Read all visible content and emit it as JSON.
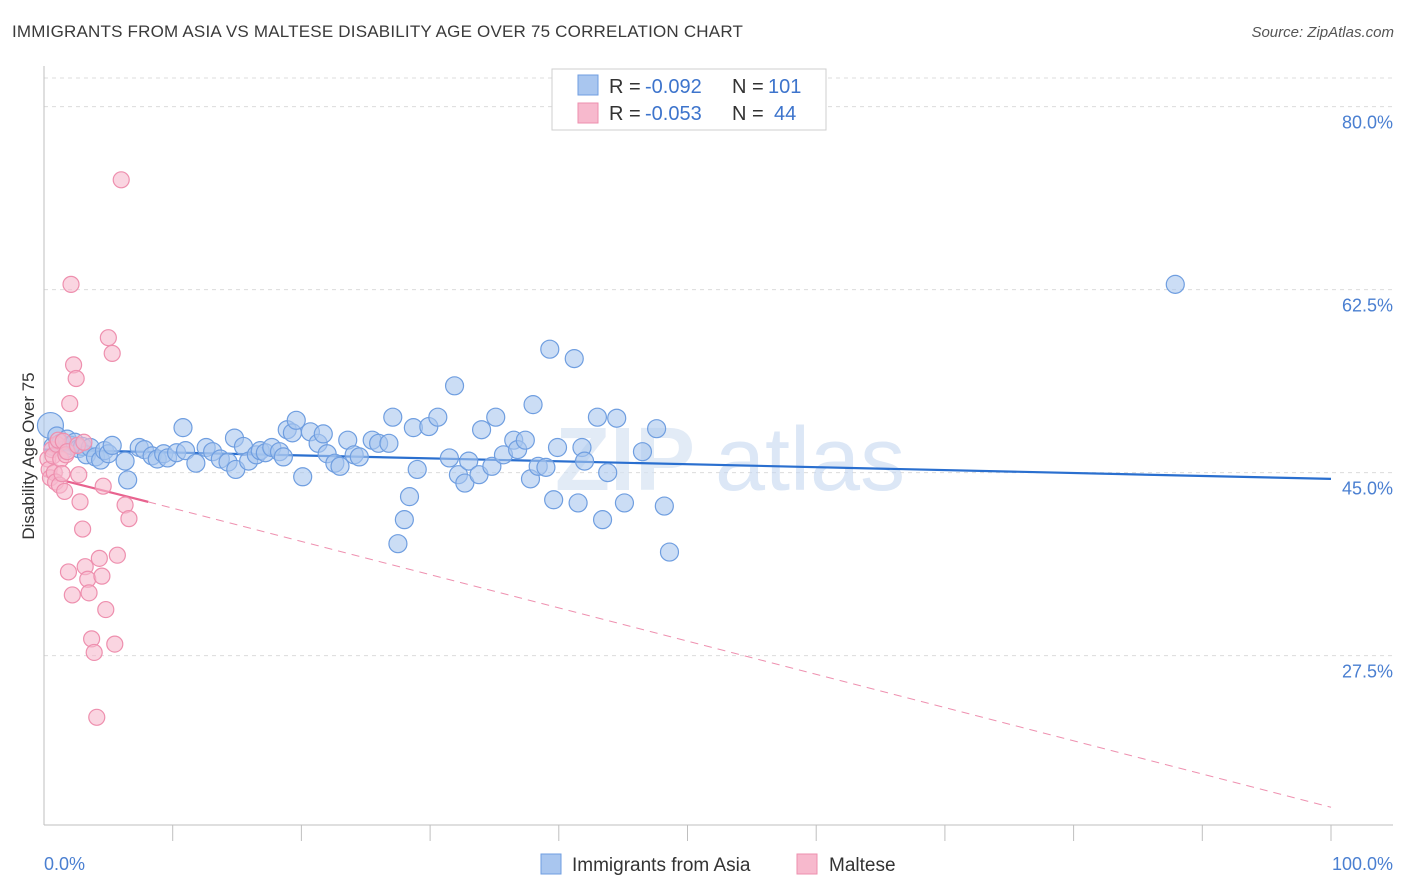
{
  "title": "IMMIGRANTS FROM ASIA VS MALTESE DISABILITY AGE OVER 75 CORRELATION CHART",
  "source": "Source: ZipAtlas.com",
  "colors": {
    "blue_fill": "#a9c6ef",
    "blue_stroke": "#6f9ee0",
    "blue_line": "#2a6fcf",
    "pink_fill": "#f7b9cd",
    "pink_stroke": "#ee8fae",
    "pink_line": "#e8638f",
    "tick_text": "#4a7fd1",
    "grid": "#dcdcdc"
  },
  "legend": {
    "rows": [
      {
        "r_label": "R = ",
        "r_value": "-0.092",
        "n_label": "N = ",
        "n_value": "101",
        "color": "blue"
      },
      {
        "r_label": "R = ",
        "r_value": "-0.053",
        "n_label": "N = ",
        "n_value": "44",
        "color": "pink"
      }
    ]
  },
  "bottom_legend": [
    {
      "label": "Immigrants from Asia",
      "color": "blue"
    },
    {
      "label": "Maltese",
      "color": "pink"
    }
  ],
  "watermark": {
    "zip": "ZIP",
    "atlas": "atlas"
  },
  "chart_data": {
    "type": "scatter",
    "xlabel": "",
    "ylabel": "Disability Age Over 75",
    "xlim": [
      0,
      100
    ],
    "ylim": [
      11.3,
      83.5
    ],
    "x_tick_labels": [
      {
        "value": 0,
        "label": "0.0%"
      },
      {
        "value": 100,
        "label": "100.0%"
      }
    ],
    "y_tick_labels": [
      {
        "value": 80,
        "label": "80.0%"
      },
      {
        "value": 62.5,
        "label": "62.5%"
      },
      {
        "value": 45,
        "label": "45.0%"
      },
      {
        "value": 27.5,
        "label": "27.5%"
      }
    ],
    "x_minor_ticks": [
      10,
      20,
      30,
      40,
      50,
      60,
      70,
      80,
      90,
      100
    ],
    "grid": true,
    "legend_position": "top-center",
    "series": [
      {
        "name": "Immigrants from Asia",
        "color": "blue",
        "points": [
          [
            0.5,
            49.5
          ],
          [
            0.7,
            47.5
          ],
          [
            1.0,
            48.5
          ],
          [
            1.3,
            47.8
          ],
          [
            1.6,
            47.2
          ],
          [
            1.8,
            48.2
          ],
          [
            2.1,
            47.6
          ],
          [
            2.4,
            47.9
          ],
          [
            2.7,
            47.3
          ],
          [
            3.0,
            47.5
          ],
          [
            3.3,
            46.7
          ],
          [
            3.6,
            47.4
          ],
          [
            4.0,
            46.5
          ],
          [
            4.4,
            46.2
          ],
          [
            4.7,
            47.1
          ],
          [
            5.0,
            46.8
          ],
          [
            5.3,
            47.6
          ],
          [
            6.3,
            46.1
          ],
          [
            6.5,
            44.3
          ],
          [
            7.4,
            47.4
          ],
          [
            7.8,
            47.2
          ],
          [
            8.4,
            46.6
          ],
          [
            8.8,
            46.3
          ],
          [
            9.3,
            46.8
          ],
          [
            9.6,
            46.4
          ],
          [
            10.3,
            46.9
          ],
          [
            10.8,
            49.3
          ],
          [
            11.0,
            47.1
          ],
          [
            11.8,
            45.9
          ],
          [
            12.6,
            47.4
          ],
          [
            13.1,
            47.0
          ],
          [
            13.7,
            46.3
          ],
          [
            14.3,
            46.0
          ],
          [
            14.8,
            48.3
          ],
          [
            14.9,
            45.3
          ],
          [
            15.5,
            47.5
          ],
          [
            15.9,
            46.1
          ],
          [
            16.5,
            46.7
          ],
          [
            16.8,
            47.1
          ],
          [
            17.2,
            46.9
          ],
          [
            17.7,
            47.4
          ],
          [
            18.3,
            47.0
          ],
          [
            18.6,
            46.5
          ],
          [
            18.9,
            49.1
          ],
          [
            19.3,
            48.8
          ],
          [
            19.6,
            50.0
          ],
          [
            20.1,
            44.6
          ],
          [
            20.7,
            48.9
          ],
          [
            21.3,
            47.8
          ],
          [
            21.7,
            48.7
          ],
          [
            22.0,
            46.8
          ],
          [
            22.6,
            45.9
          ],
          [
            23.0,
            45.6
          ],
          [
            23.6,
            48.1
          ],
          [
            24.1,
            46.7
          ],
          [
            24.5,
            46.5
          ],
          [
            25.5,
            48.1
          ],
          [
            26.0,
            47.8
          ],
          [
            26.8,
            47.8
          ],
          [
            27.1,
            50.3
          ],
          [
            27.5,
            38.2
          ],
          [
            28.0,
            40.5
          ],
          [
            28.4,
            42.7
          ],
          [
            28.7,
            49.3
          ],
          [
            29.0,
            45.3
          ],
          [
            29.9,
            49.4
          ],
          [
            30.6,
            50.3
          ],
          [
            31.5,
            46.4
          ],
          [
            31.9,
            53.3
          ],
          [
            32.2,
            44.8
          ],
          [
            32.7,
            44.0
          ],
          [
            33.0,
            46.1
          ],
          [
            33.8,
            44.8
          ],
          [
            34.0,
            49.1
          ],
          [
            34.8,
            45.6
          ],
          [
            35.1,
            50.3
          ],
          [
            35.7,
            46.7
          ],
          [
            36.5,
            48.1
          ],
          [
            36.8,
            47.2
          ],
          [
            37.4,
            48.1
          ],
          [
            37.8,
            44.4
          ],
          [
            38.0,
            51.5
          ],
          [
            38.4,
            45.6
          ],
          [
            39.0,
            45.5
          ],
          [
            39.3,
            56.8
          ],
          [
            39.6,
            42.4
          ],
          [
            39.9,
            47.4
          ],
          [
            41.2,
            55.9
          ],
          [
            41.5,
            42.1
          ],
          [
            41.8,
            47.4
          ],
          [
            42.0,
            46.1
          ],
          [
            43.0,
            50.3
          ],
          [
            43.4,
            40.5
          ],
          [
            43.8,
            45.0
          ],
          [
            44.5,
            50.2
          ],
          [
            45.1,
            42.1
          ],
          [
            46.5,
            47.0
          ],
          [
            47.6,
            49.2
          ],
          [
            48.2,
            41.8
          ],
          [
            48.6,
            37.4
          ],
          [
            87.9,
            63.0
          ]
        ]
      },
      {
        "name": "Maltese",
        "color": "pink",
        "points": [
          [
            0.3,
            46.3
          ],
          [
            0.4,
            45.3
          ],
          [
            0.5,
            44.5
          ],
          [
            0.6,
            47.2
          ],
          [
            0.7,
            46.6
          ],
          [
            0.8,
            45.0
          ],
          [
            0.9,
            44.1
          ],
          [
            1.0,
            47.7
          ],
          [
            1.1,
            48.1
          ],
          [
            1.2,
            43.8
          ],
          [
            1.3,
            46.3
          ],
          [
            1.4,
            44.9
          ],
          [
            1.5,
            48.0
          ],
          [
            1.6,
            43.2
          ],
          [
            1.7,
            46.7
          ],
          [
            1.8,
            47.0
          ],
          [
            2.0,
            51.6
          ],
          [
            2.1,
            63.0
          ],
          [
            2.3,
            55.3
          ],
          [
            2.5,
            54.0
          ],
          [
            2.6,
            47.6
          ],
          [
            2.7,
            44.8
          ],
          [
            2.8,
            42.2
          ],
          [
            3.0,
            39.6
          ],
          [
            3.2,
            36.0
          ],
          [
            3.4,
            34.8
          ],
          [
            3.5,
            33.5
          ],
          [
            3.7,
            29.1
          ],
          [
            3.9,
            27.8
          ],
          [
            4.1,
            21.6
          ],
          [
            4.3,
            36.8
          ],
          [
            4.5,
            35.1
          ],
          [
            4.8,
            31.9
          ],
          [
            5.0,
            57.9
          ],
          [
            5.3,
            56.4
          ],
          [
            5.5,
            28.6
          ],
          [
            5.7,
            37.1
          ],
          [
            6.0,
            73.0
          ],
          [
            6.3,
            41.9
          ],
          [
            6.6,
            40.6
          ],
          [
            2.2,
            33.3
          ],
          [
            1.9,
            35.5
          ],
          [
            3.1,
            47.9
          ],
          [
            4.6,
            43.7
          ]
        ]
      }
    ],
    "trend_lines": [
      {
        "series": "Immigrants from Asia",
        "x": [
          0,
          100
        ],
        "y": [
          47.2,
          44.4
        ],
        "style": "solid"
      },
      {
        "series": "Maltese",
        "x": [
          0,
          8.1
        ],
        "y": [
          44.7,
          42.2
        ],
        "style": "solid"
      },
      {
        "series": "Maltese",
        "x": [
          8.1,
          100
        ],
        "y": [
          42.2,
          13.0
        ],
        "style": "dashed"
      }
    ]
  }
}
